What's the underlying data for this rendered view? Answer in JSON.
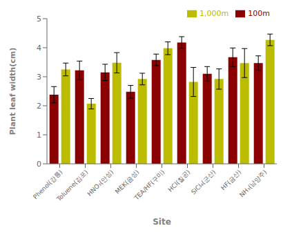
{
  "chart_data": {
    "type": "bar",
    "categories": [
      "Phenol(강릉)",
      "Toluene(김포)",
      "HNO₃(안성)",
      "MEK(음성)",
      "TEA/HF(구미)",
      "HCl(칠공)",
      "SiCl₄(군산)",
      "HF(금산)",
      "NH₃(남양주)"
    ],
    "series": [
      {
        "name": "100m",
        "color": "#8B0000",
        "values": [
          2.38,
          3.22,
          3.15,
          2.48,
          3.58,
          4.18,
          3.1,
          3.67,
          3.47
        ],
        "errors": [
          0.28,
          0.32,
          0.28,
          0.22,
          0.2,
          0.2,
          0.25,
          0.32,
          0.25
        ]
      },
      {
        "name": "1,000m",
        "color": "#BCBC00",
        "values": [
          3.25,
          2.07,
          3.48,
          2.92,
          3.98,
          2.82,
          2.92,
          3.47,
          4.27
        ],
        "errors": [
          0.22,
          0.18,
          0.35,
          0.2,
          0.22,
          0.5,
          0.35,
          0.5,
          0.2
        ]
      }
    ],
    "xlabel": "Site",
    "ylabel": "Plant leaf width(cm)",
    "ylim": [
      0,
      5
    ],
    "yticks": [
      0,
      1,
      2,
      3,
      4,
      5
    ],
    "legend": "upper right",
    "grid": false
  }
}
